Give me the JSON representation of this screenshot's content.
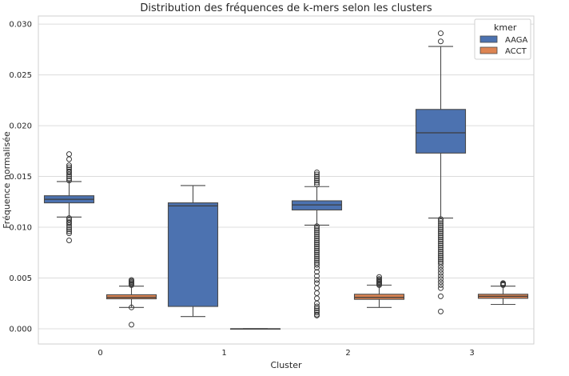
{
  "chart_data": {
    "type": "box",
    "title": "Distribution des fréquences de k-mers selon les clusters",
    "xlabel": "Cluster",
    "ylabel": "Fréquence normalisée",
    "categories": [
      "0",
      "1",
      "2",
      "3"
    ],
    "ylim": [
      -0.0015,
      0.0308
    ],
    "yticks": [
      0.0,
      0.005,
      0.01,
      0.015,
      0.02,
      0.025,
      0.03
    ],
    "ytick_labels": [
      "0.000",
      "0.005",
      "0.010",
      "0.015",
      "0.020",
      "0.025",
      "0.030"
    ],
    "grid": "horizontal",
    "legend": {
      "title": "kmer",
      "position": "top-right"
    },
    "series": [
      {
        "name": "AAGA",
        "color": "#4c72b0",
        "boxes": [
          {
            "category": "0",
            "whislo": 0.011,
            "q1": 0.0124,
            "median": 0.01275,
            "q3": 0.0131,
            "whishi": 0.0145,
            "fliers": [
              0.0172,
              0.0167,
              0.0161,
              0.0159,
              0.0157,
              0.0155,
              0.0154,
              0.0152,
              0.015,
              0.0148,
              0.0146,
              0.0109,
              0.0107,
              0.0105,
              0.0104,
              0.0102,
              0.01,
              0.0098,
              0.0096,
              0.0094,
              0.0087
            ]
          },
          {
            "category": "1",
            "whislo": 0.0012,
            "q1": 0.0022,
            "median": 0.0121,
            "q3": 0.0124,
            "whishi": 0.0141,
            "fliers": []
          },
          {
            "category": "2",
            "whislo": 0.0102,
            "q1": 0.0117,
            "median": 0.0122,
            "q3": 0.0126,
            "whishi": 0.014,
            "fliers": [
              0.0154,
              0.0152,
              0.015,
              0.0148,
              0.0146,
              0.0144,
              0.0142,
              0.0101,
              0.0099,
              0.0097,
              0.0095,
              0.0093,
              0.0091,
              0.0089,
              0.0087,
              0.0085,
              0.0083,
              0.0081,
              0.0079,
              0.0077,
              0.0075,
              0.0073,
              0.0071,
              0.0069,
              0.0067,
              0.0065,
              0.0063,
              0.006,
              0.0056,
              0.0052,
              0.0048,
              0.0045,
              0.004,
              0.0035,
              0.003,
              0.0025,
              0.0022,
              0.002,
              0.0018,
              0.0016,
              0.0014,
              0.0013
            ]
          },
          {
            "category": "3",
            "whislo": 0.0109,
            "q1": 0.0173,
            "median": 0.0193,
            "q3": 0.0216,
            "whishi": 0.0278,
            "fliers": [
              0.0291,
              0.0283,
              0.0108,
              0.0106,
              0.0104,
              0.0102,
              0.01,
              0.0098,
              0.0096,
              0.0094,
              0.0092,
              0.009,
              0.0088,
              0.0086,
              0.0084,
              0.0082,
              0.008,
              0.0078,
              0.0076,
              0.0074,
              0.0072,
              0.007,
              0.0068,
              0.0066,
              0.0064,
              0.0061,
              0.0058,
              0.0055,
              0.0052,
              0.0049,
              0.0046,
              0.0043,
              0.004,
              0.0032,
              0.0017
            ]
          }
        ]
      },
      {
        "name": "ACCT",
        "color": "#dd8452",
        "boxes": [
          {
            "category": "0",
            "whislo": 0.0021,
            "q1": 0.00295,
            "median": 0.0031,
            "q3": 0.00335,
            "whishi": 0.0042,
            "fliers": [
              0.0048,
              0.0047,
              0.0046,
              0.0045,
              0.0044,
              0.0043,
              0.0021,
              0.0004
            ]
          },
          {
            "category": "1",
            "whislo": 0.0,
            "q1": 0.0,
            "median": 0.0,
            "q3": 0.0,
            "whishi": 0.0,
            "fliers": []
          },
          {
            "category": "2",
            "whislo": 0.0021,
            "q1": 0.0029,
            "median": 0.0031,
            "q3": 0.0034,
            "whishi": 0.0043,
            "fliers": [
              0.0051,
              0.0049,
              0.0048,
              0.0047,
              0.0046,
              0.0045,
              0.0044,
              0.0043
            ]
          },
          {
            "category": "3",
            "whislo": 0.0024,
            "q1": 0.003,
            "median": 0.0032,
            "q3": 0.0034,
            "whishi": 0.0042,
            "fliers": [
              0.0045,
              0.00445,
              0.0044,
              0.00435,
              0.0043
            ]
          }
        ]
      }
    ]
  }
}
